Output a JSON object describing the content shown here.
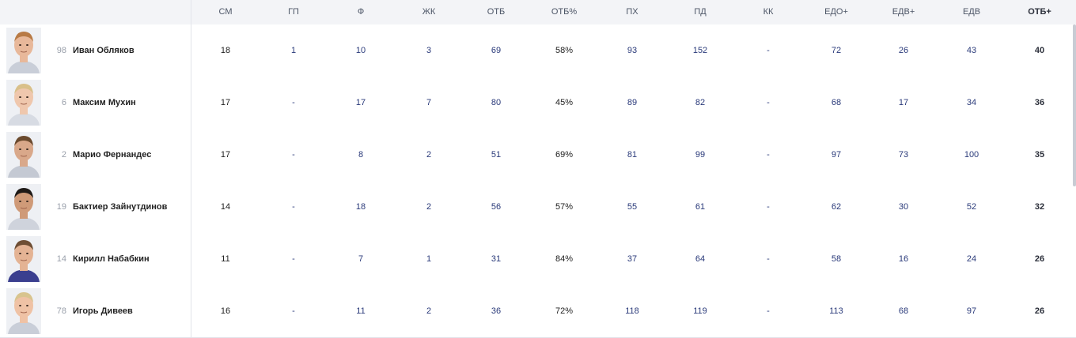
{
  "columns": [
    "СМ",
    "ГП",
    "Ф",
    "ЖК",
    "ОТБ",
    "ОТБ%",
    "ПХ",
    "ПД",
    "КК",
    "ЕДО+",
    "ЕДВ+",
    "ЕДВ",
    "ОТБ+"
  ],
  "players": [
    {
      "number": "98",
      "name": "Иван Обляков",
      "stats": [
        "18",
        "1",
        "10",
        "3",
        "69",
        "58%",
        "93",
        "152",
        "-",
        "72",
        "26",
        "43",
        "40"
      ]
    },
    {
      "number": "6",
      "name": "Максим Мухин",
      "stats": [
        "17",
        "-",
        "17",
        "7",
        "80",
        "45%",
        "89",
        "82",
        "-",
        "68",
        "17",
        "34",
        "36"
      ]
    },
    {
      "number": "2",
      "name": "Марио Фернандес",
      "stats": [
        "17",
        "-",
        "8",
        "2",
        "51",
        "69%",
        "81",
        "99",
        "-",
        "97",
        "73",
        "100",
        "35"
      ]
    },
    {
      "number": "19",
      "name": "Бактиер Зайнутдинов",
      "stats": [
        "14",
        "-",
        "18",
        "2",
        "56",
        "57%",
        "55",
        "61",
        "-",
        "62",
        "30",
        "52",
        "32"
      ]
    },
    {
      "number": "14",
      "name": "Кирилл Набабкин",
      "stats": [
        "11",
        "-",
        "7",
        "1",
        "31",
        "84%",
        "37",
        "64",
        "-",
        "58",
        "16",
        "24",
        "26"
      ]
    },
    {
      "number": "78",
      "name": "Игорь Дивеев",
      "stats": [
        "16",
        "-",
        "11",
        "2",
        "36",
        "72%",
        "118",
        "119",
        "-",
        "113",
        "68",
        "97",
        "26"
      ]
    }
  ],
  "colors": {
    "header_bg": "#f3f4f7",
    "border": "#e2e4ea",
    "value_link": "#2a3a7a",
    "value_dark": "#222222"
  },
  "icons": {
    "photo": "player-photo"
  }
}
